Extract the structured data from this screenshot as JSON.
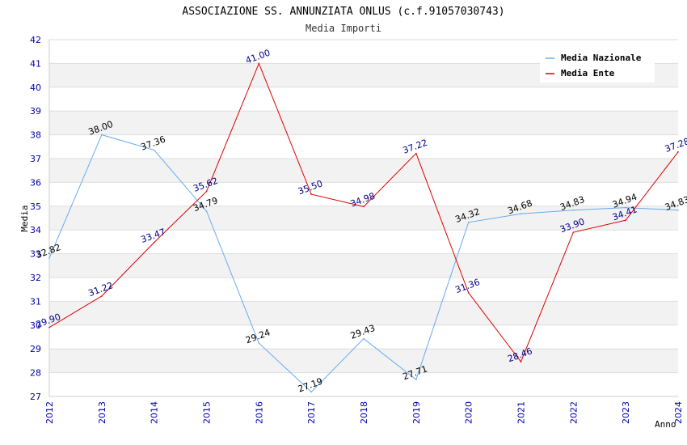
{
  "chart_data": {
    "type": "line",
    "title": "ASSOCIAZIONE SS. ANNUNZIATA ONLUS (c.f.91057030743)",
    "subtitle": "Media Importi",
    "xlabel": "Anno",
    "ylabel": "Media",
    "categories": [
      "2012",
      "2013",
      "2014",
      "2015",
      "2016",
      "2017",
      "2018",
      "2019",
      "2020",
      "2021",
      "2022",
      "2023",
      "2024"
    ],
    "ylim": [
      27,
      42
    ],
    "yticks": [
      "27",
      "28",
      "29",
      "30",
      "31",
      "32",
      "33",
      "34",
      "35",
      "36",
      "37",
      "38",
      "39",
      "40",
      "41",
      "42"
    ],
    "grid": true,
    "legend_position": "top-right",
    "series": [
      {
        "name": "Media Nazionale",
        "color": "#66aaee",
        "label_color": "#000000",
        "values": [
          32.82,
          38.0,
          37.36,
          34.79,
          29.24,
          27.19,
          29.43,
          27.71,
          34.32,
          34.68,
          34.83,
          34.94,
          34.83
        ],
        "labels": [
          "32.82",
          "38.00",
          "37.36",
          "34.79",
          "29.24",
          "27.19",
          "29.43",
          "27.71",
          "34.32",
          "34.68",
          "34.83",
          "34.94",
          "34.83"
        ]
      },
      {
        "name": "Media Ente",
        "color": "#dd0000",
        "label_color": "#000088",
        "values": [
          29.9,
          31.22,
          33.47,
          35.62,
          41.0,
          35.5,
          34.98,
          37.22,
          31.36,
          28.46,
          33.9,
          34.41,
          37.28
        ],
        "labels": [
          "29.90",
          "31.22",
          "33.47",
          "35.62",
          "41.00",
          "35.50",
          "34.98",
          "37.22",
          "31.36",
          "28.46",
          "33.90",
          "34.41",
          "37.28"
        ]
      }
    ]
  }
}
